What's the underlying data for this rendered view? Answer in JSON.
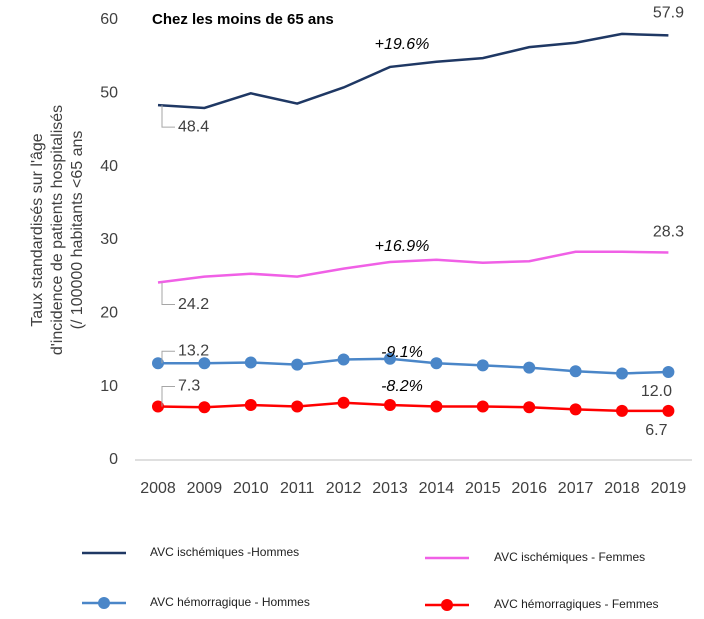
{
  "chart_data": {
    "type": "line",
    "title": "Chez les moins de 65 ans",
    "y_label": [
      "Taux standardisés  sur l'âge",
      "d'incidence de patients hospitalisés",
      "(/ 100000 habitants <65 ans"
    ],
    "categories": [
      "2008",
      "2009",
      "2010",
      "2011",
      "2012",
      "2013",
      "2014",
      "2015",
      "2016",
      "2017",
      "2018",
      "2019"
    ],
    "ylim": [
      0,
      60
    ],
    "yticks": [
      0,
      10,
      20,
      30,
      40,
      50,
      60
    ],
    "series": [
      {
        "name": "AVC ischémiques -Hommes",
        "color": "#1f3864",
        "marker": false,
        "values": [
          48.4,
          48.0,
          50.0,
          48.6,
          50.8,
          53.6,
          54.3,
          54.8,
          56.3,
          56.9,
          58.1,
          57.9
        ],
        "value_labels": [
          "48.4",
          null,
          null,
          null,
          null,
          null,
          null,
          null,
          null,
          null,
          null,
          "57.9"
        ],
        "annotation": "+19.6%"
      },
      {
        "name": "AVC ischémiques - Femmes",
        "color": "#f060e6",
        "marker": false,
        "values": [
          24.2,
          25.0,
          25.4,
          25.0,
          26.1,
          27.0,
          27.3,
          26.9,
          27.1,
          28.4,
          28.4,
          28.3
        ],
        "value_labels": [
          "24.2",
          null,
          null,
          null,
          null,
          null,
          null,
          null,
          null,
          null,
          null,
          "28.3"
        ],
        "annotation": "+16.9%"
      },
      {
        "name": "AVC hémorragique - Hommes",
        "color": "#4a86c8",
        "marker": true,
        "values": [
          13.2,
          13.2,
          13.3,
          13.0,
          13.7,
          13.8,
          13.2,
          12.9,
          12.6,
          12.1,
          11.8,
          12.0
        ],
        "value_labels": [
          "13.2",
          null,
          null,
          null,
          null,
          null,
          null,
          null,
          null,
          null,
          null,
          "12.0"
        ],
        "annotation": "-9.1%"
      },
      {
        "name": "AVC hémorragiques - Femmes",
        "color": "#ff0000",
        "marker": true,
        "values": [
          7.3,
          7.2,
          7.5,
          7.3,
          7.8,
          7.5,
          7.3,
          7.3,
          7.2,
          6.9,
          6.7,
          6.7
        ],
        "value_labels": [
          "7.3",
          null,
          null,
          null,
          null,
          null,
          null,
          null,
          null,
          null,
          null,
          "6.7"
        ],
        "annotation": "-8.2%"
      }
    ]
  }
}
